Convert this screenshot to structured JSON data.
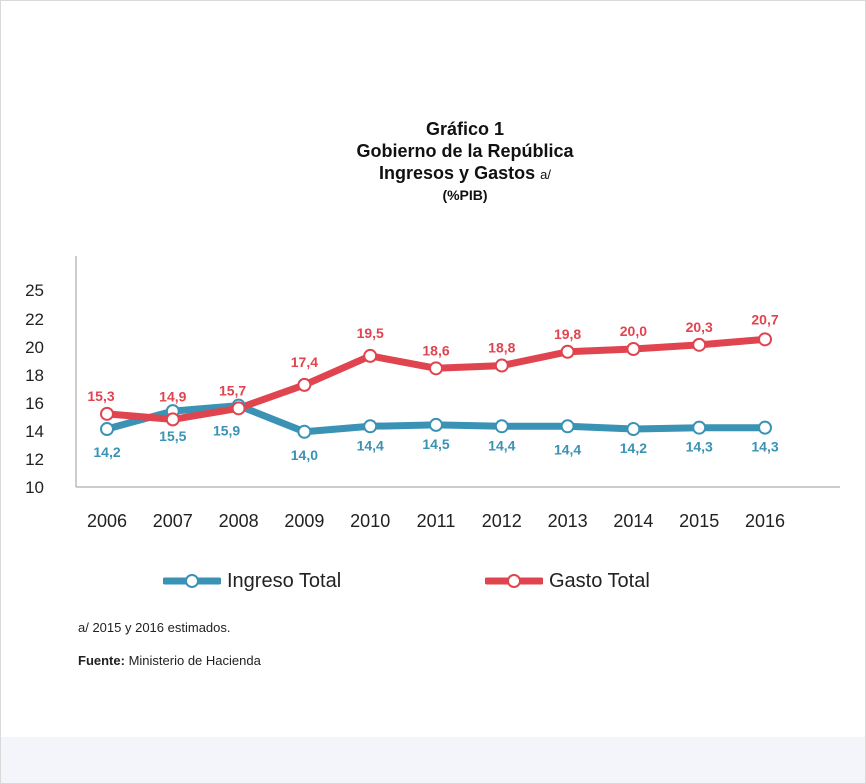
{
  "title": {
    "line1": "Gráfico 1",
    "line2": "Gobierno de la República",
    "line3": "Ingresos y Gastos",
    "line3_note": "a/",
    "line4": "(%PIB)"
  },
  "chart_data": {
    "type": "line",
    "x": [
      "2006",
      "2007",
      "2008",
      "2009",
      "2010",
      "2011",
      "2012",
      "2013",
      "2014",
      "2015",
      "2016"
    ],
    "yticks": [
      "10",
      "12",
      "14",
      "16",
      "18",
      "20",
      "22",
      "25"
    ],
    "series": [
      {
        "name": "Ingreso Total",
        "color": "#3a92b4",
        "values": [
          14.2,
          15.5,
          15.9,
          14.0,
          14.4,
          14.5,
          14.4,
          14.4,
          14.2,
          14.3,
          14.3
        ],
        "labels": [
          "14,2",
          "15,5",
          "15,9",
          "14,0",
          "14,4",
          "14,5",
          "14,4",
          "14,4",
          "14,2",
          "14,3",
          "14,3"
        ]
      },
      {
        "name": "Gasto Total",
        "color": "#e0454f",
        "values": [
          15.3,
          14.9,
          15.7,
          17.4,
          19.5,
          18.6,
          18.8,
          19.8,
          20.0,
          20.3,
          20.7
        ],
        "labels": [
          "15,3",
          "14,9",
          "15,7",
          "17,4",
          "19,5",
          "18,6",
          "18,8",
          "19,8",
          "20,0",
          "20,3",
          "20,7"
        ]
      }
    ],
    "legend_position": "bottom",
    "grid": false
  },
  "footnote": "a/ 2015 y 2016 estimados.",
  "source": {
    "label": "Fuente:",
    "text": "Ministerio de Hacienda"
  }
}
